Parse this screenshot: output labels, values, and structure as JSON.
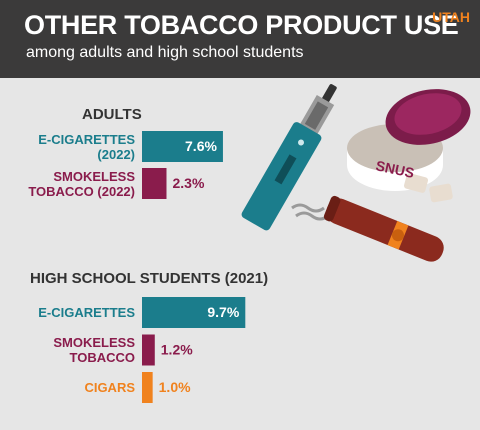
{
  "header": {
    "title": "OTHER TOBACCO PRODUCT USE",
    "subtitle": "among adults and high school students",
    "region": "UTAH"
  },
  "illustration": {
    "tin_label": "SNUS"
  },
  "chart_data": [
    {
      "type": "bar",
      "orientation": "horizontal",
      "title": "ADULTS",
      "categories": [
        "E-CIGARETTES (2022)",
        "SMOKELESS TOBACCO (2022)"
      ],
      "values": [
        7.6,
        2.3
      ],
      "value_labels": [
        "7.6%",
        "2.3%"
      ],
      "colors": [
        "#1b7d8c",
        "#8a1c4c"
      ]
    },
    {
      "type": "bar",
      "orientation": "horizontal",
      "title": "HIGH SCHOOL STUDENTS (2021)",
      "categories": [
        "E-CIGARETTES",
        "SMOKELESS TOBACCO",
        "CIGARS"
      ],
      "values": [
        9.7,
        1.2,
        1.0
      ],
      "value_labels": [
        "9.7%",
        "1.2%",
        "1.0%"
      ],
      "colors": [
        "#1b7d8c",
        "#8a1c4c",
        "#f0821e"
      ]
    }
  ]
}
